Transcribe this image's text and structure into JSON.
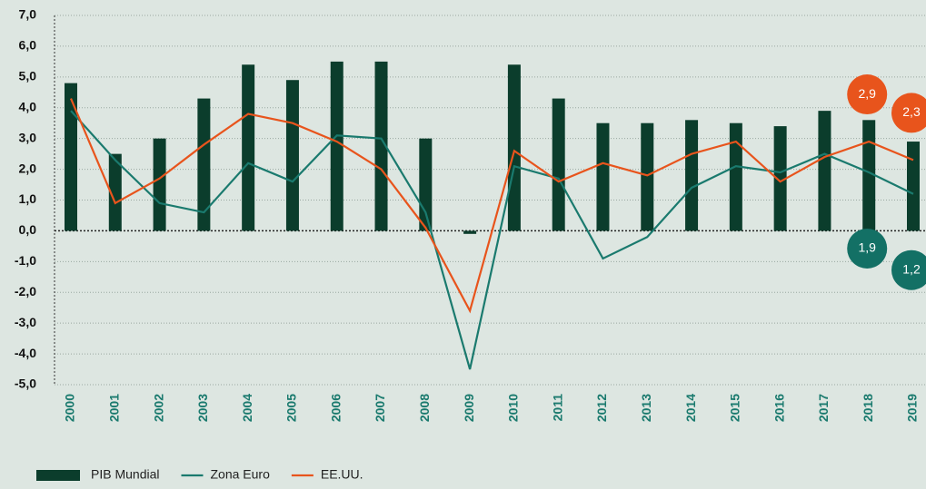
{
  "chart_data": {
    "type": "bar",
    "categories": [
      "2000",
      "2001",
      "2002",
      "2003",
      "2004",
      "2005",
      "2006",
      "2007",
      "2008",
      "2009",
      "2010",
      "2011",
      "2012",
      "2013",
      "2014",
      "2015",
      "2016",
      "2017",
      "2018",
      "2019"
    ],
    "series": [
      {
        "name": "PIB Mundial",
        "type": "bar",
        "color": "#0b3d2c",
        "values": [
          4.8,
          2.5,
          3.0,
          4.3,
          5.4,
          4.9,
          5.5,
          5.5,
          3.0,
          -0.1,
          5.4,
          4.3,
          3.5,
          3.5,
          3.6,
          3.5,
          3.4,
          3.9,
          3.6,
          2.9
        ]
      },
      {
        "name": "Zona Euro",
        "type": "line",
        "color": "#1a7a6e",
        "values": [
          3.9,
          2.3,
          0.9,
          0.6,
          2.2,
          1.6,
          3.1,
          3.0,
          0.6,
          -4.5,
          2.1,
          1.7,
          -0.9,
          -0.2,
          1.4,
          2.1,
          1.9,
          2.5,
          1.9,
          1.2
        ],
        "value_labels": [
          null,
          null,
          null,
          null,
          null,
          null,
          null,
          null,
          null,
          null,
          null,
          null,
          null,
          null,
          null,
          null,
          null,
          null,
          "1,9",
          "1,2"
        ]
      },
      {
        "name": "EE.UU.",
        "type": "line",
        "color": "#e8541c",
        "values": [
          4.3,
          0.9,
          1.7,
          2.8,
          3.8,
          3.5,
          2.9,
          2.0,
          0.1,
          -2.6,
          2.6,
          1.6,
          2.2,
          1.8,
          2.5,
          2.9,
          1.6,
          2.4,
          2.9,
          2.3
        ],
        "value_labels": [
          null,
          null,
          null,
          null,
          null,
          null,
          null,
          null,
          null,
          null,
          null,
          null,
          null,
          null,
          null,
          null,
          null,
          null,
          "2,9",
          "2,3"
        ]
      }
    ],
    "ylim": [
      -5,
      7
    ],
    "yticks": [
      {
        "value": -5,
        "label": "-5,0"
      },
      {
        "value": -4,
        "label": "-4,0"
      },
      {
        "value": -3,
        "label": "-3,0"
      },
      {
        "value": -2,
        "label": "-2,0"
      },
      {
        "value": -1,
        "label": "-1,0"
      },
      {
        "value": 0,
        "label": "0,0"
      },
      {
        "value": 1,
        "label": "1,0"
      },
      {
        "value": 2,
        "label": "2,0"
      },
      {
        "value": 3,
        "label": "3,0"
      },
      {
        "value": 4,
        "label": "4,0"
      },
      {
        "value": 5,
        "label": "5,0"
      },
      {
        "value": 6,
        "label": "6,0"
      },
      {
        "value": 7,
        "label": "7,0"
      }
    ],
    "grid": true,
    "legend": "bottom-left"
  }
}
